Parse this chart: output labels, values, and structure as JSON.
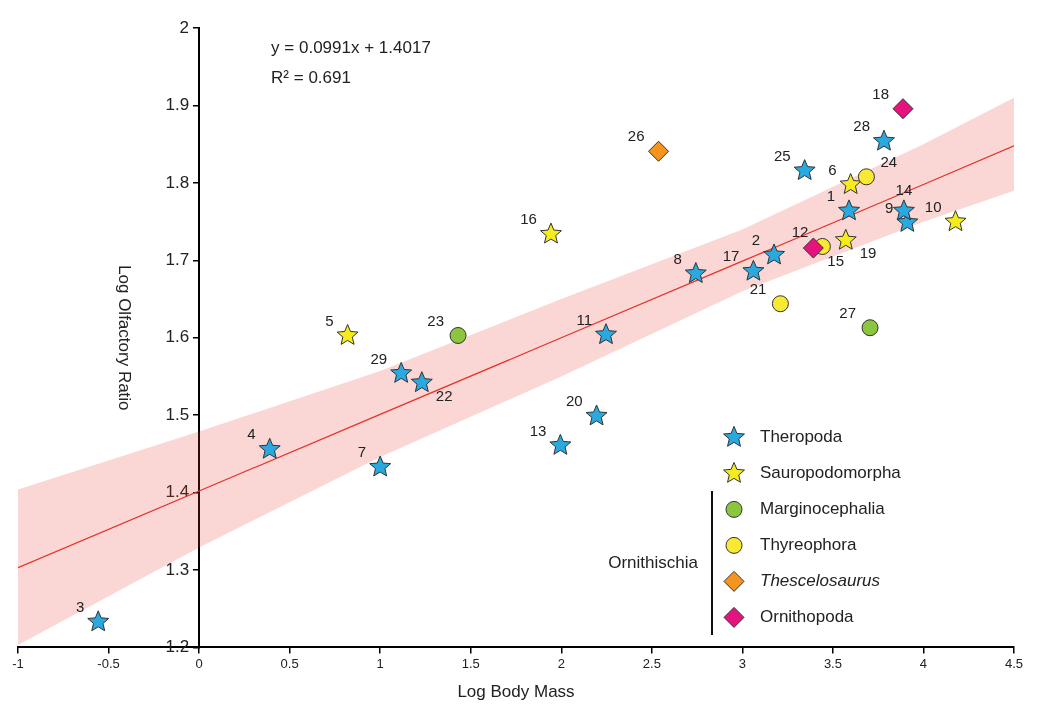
{
  "chart_data": {
    "type": "scatter",
    "xlabel": "Log Body Mass",
    "ylabel": "Log Olfactory Ratio",
    "xlim": [
      -1,
      4.5
    ],
    "xticks": [
      -1,
      -0.5,
      0,
      0.5,
      1,
      1.5,
      2,
      2.5,
      3,
      3.5,
      4,
      4.5
    ],
    "ylim": [
      1.2,
      2
    ],
    "yticks": [
      1.2,
      1.3,
      1.4,
      1.5,
      1.6,
      1.7,
      1.8,
      1.9,
      2
    ],
    "grid": false,
    "legend": "bottom right",
    "annotations": [
      "y = 0.0991x + 1.4017",
      "R² = 0.691",
      "Ornithischia",
      {
        "text": "1",
        "x": 3.589,
        "y": 1.764
      },
      {
        "text": "2",
        "x": 3.175,
        "y": 1.707
      },
      {
        "text": "3",
        "x": -0.557,
        "y": 1.233
      },
      {
        "text": "4",
        "x": 0.39,
        "y": 1.456
      },
      {
        "text": "5",
        "x": 0.82,
        "y": 1.603
      },
      {
        "text": "6",
        "x": 3.598,
        "y": 1.798
      },
      {
        "text": "7",
        "x": 1.0,
        "y": 1.433
      },
      {
        "text": "8",
        "x": 2.743,
        "y": 1.683
      },
      {
        "text": "9",
        "x": 3.911,
        "y": 1.749
      },
      {
        "text": "10",
        "x": 4.177,
        "y": 1.75
      },
      {
        "text": "11",
        "x": 2.247,
        "y": 1.604
      },
      {
        "text": "12",
        "x": 3.442,
        "y": 1.718
      },
      {
        "text": "13",
        "x": 1.995,
        "y": 1.461
      },
      {
        "text": "14",
        "x": 3.892,
        "y": 1.764
      },
      {
        "text": "15",
        "x": 3.392,
        "y": 1.716
      },
      {
        "text": "16",
        "x": 1.943,
        "y": 1.734
      },
      {
        "text": "17",
        "x": 3.061,
        "y": 1.686
      },
      {
        "text": "18",
        "x": 3.887,
        "y": 1.896
      },
      {
        "text": "19",
        "x": 3.571,
        "y": 1.726
      },
      {
        "text": "20",
        "x": 2.195,
        "y": 1.499
      },
      {
        "text": "21",
        "x": 3.21,
        "y": 1.644
      },
      {
        "text": "22",
        "x": 1.23,
        "y": 1.542
      },
      {
        "text": "23",
        "x": 1.43,
        "y": 1.603
      },
      {
        "text": "24",
        "x": 3.685,
        "y": 1.808
      },
      {
        "text": "25",
        "x": 3.344,
        "y": 1.816
      },
      {
        "text": "26",
        "x": 2.537,
        "y": 1.841
      },
      {
        "text": "27",
        "x": 3.705,
        "y": 1.613
      },
      {
        "text": "28",
        "x": 3.782,
        "y": 1.854
      },
      {
        "text": "29",
        "x": 1.116,
        "y": 1.554
      }
    ],
    "series": [
      {
        "name": "Theropoda",
        "color": "#29a9e0",
        "marker": "star",
        "x": [
          3.589,
          3.175,
          -0.557,
          0.39,
          1.0,
          2.743,
          3.911,
          2.247,
          1.995,
          3.892,
          3.061,
          2.195,
          1.23,
          3.344,
          3.782,
          1.116
        ],
        "values": [
          1.764,
          1.707,
          1.233,
          1.456,
          1.433,
          1.683,
          1.749,
          1.604,
          1.461,
          1.764,
          1.686,
          1.499,
          1.542,
          1.816,
          1.854,
          1.554
        ]
      },
      {
        "name": "Sauropodomorpha",
        "color": "#f7ec1b",
        "marker": "star",
        "x": [
          0.82,
          3.598,
          4.177,
          1.943,
          3.571
        ],
        "values": [
          1.603,
          1.798,
          1.75,
          1.734,
          1.726
        ]
      },
      {
        "name": "Marginocephalia",
        "color": "#8cc63f",
        "marker": "circle",
        "x": [
          1.43,
          3.705
        ],
        "values": [
          1.603,
          1.613
        ]
      },
      {
        "name": "Thyreophora",
        "color": "#f9e933",
        "marker": "circle",
        "x": [
          3.442,
          3.21,
          3.685
        ],
        "values": [
          1.718,
          1.644,
          1.808
        ]
      },
      {
        "name": "Thescelosaurus",
        "color": "#f7941d",
        "marker": "diamond",
        "x": [
          2.537
        ],
        "values": [
          1.841
        ]
      },
      {
        "name": "Ornithopoda",
        "color": "#e6137f",
        "marker": "diamond",
        "x": [
          3.392,
          3.887
        ],
        "values": [
          1.716,
          1.896
        ]
      },
      {
        "type": "line",
        "color": "#e8302a",
        "marker": "none",
        "x": [
          -1,
          0,
          1,
          2,
          3,
          4,
          4.5
        ],
        "values": [
          1.303,
          1.402,
          1.501,
          1.6,
          1.699,
          1.798,
          1.848
        ],
        "lower": [
          1.203,
          1.329,
          1.446,
          1.55,
          1.66,
          1.75,
          1.79
        ],
        "upper": [
          1.404,
          1.479,
          1.557,
          1.65,
          1.74,
          1.85,
          1.91
        ]
      }
    ]
  }
}
